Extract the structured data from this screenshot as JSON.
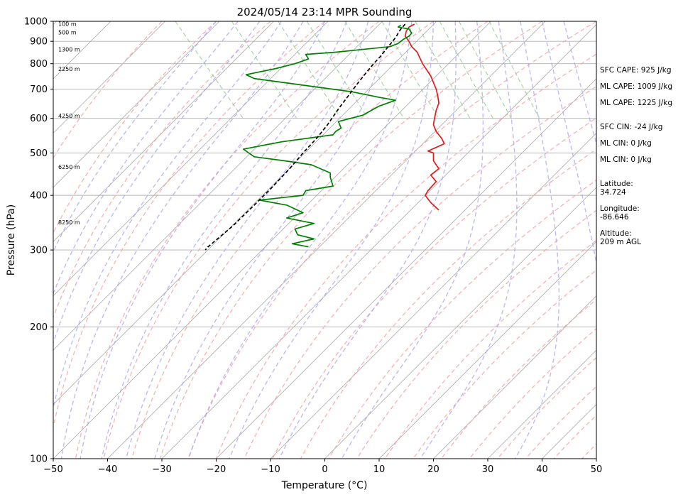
{
  "chart_data": {
    "type": "line",
    "title": "2024/05/14 23:14 MPR Sounding",
    "xlabel": "Temperature (°C)",
    "ylabel": "Pressure (hPa)",
    "xlim": [
      -50,
      50
    ],
    "ylim": [
      1000,
      100
    ],
    "y_scale": "log",
    "x_ticks": [
      -50,
      -40,
      -30,
      -20,
      -10,
      0,
      10,
      20,
      30,
      40,
      50
    ],
    "x_tick_labels": [
      "−50",
      "−40",
      "−30",
      "−20",
      "−10",
      "0",
      "10",
      "20",
      "30",
      "40",
      "50"
    ],
    "y_ticks": [
      1000,
      900,
      800,
      700,
      600,
      500,
      400,
      300,
      200,
      100
    ],
    "y_tick_labels": [
      "1000",
      "900",
      "800",
      "700",
      "600",
      "500",
      "400",
      "300",
      "200",
      "100"
    ],
    "grid": true,
    "series": [
      {
        "color": "#e41a1c",
        "points": [
          [
            16.5,
            985
          ],
          [
            15.5,
            970
          ],
          [
            15.0,
            950
          ],
          [
            14.8,
            925
          ],
          [
            15.5,
            900
          ],
          [
            16.0,
            875
          ],
          [
            17.0,
            850
          ],
          [
            18.0,
            800
          ],
          [
            19.5,
            750
          ],
          [
            20.5,
            700
          ],
          [
            20.8,
            675
          ],
          [
            21.0,
            650
          ],
          [
            20.5,
            625
          ],
          [
            20.2,
            600
          ],
          [
            20.0,
            580
          ],
          [
            20.5,
            560
          ],
          [
            21.5,
            540
          ],
          [
            22.0,
            525
          ],
          [
            19.0,
            505
          ],
          [
            20.0,
            500
          ],
          [
            20.0,
            480
          ],
          [
            21.0,
            460
          ],
          [
            19.5,
            445
          ],
          [
            20.5,
            430
          ],
          [
            19.0,
            410
          ],
          [
            18.5,
            400
          ],
          [
            19.5,
            385
          ],
          [
            20.5,
            375
          ],
          [
            21.0,
            370
          ]
        ]
      },
      {
        "color": "#008000",
        "points": [
          [
            14.0,
            980
          ],
          [
            13.5,
            970
          ],
          [
            15.5,
            960
          ],
          [
            16.0,
            940
          ],
          [
            15.5,
            925
          ],
          [
            14.5,
            910
          ],
          [
            13.5,
            890
          ],
          [
            12.0,
            875
          ],
          [
            8.0,
            865
          ],
          [
            2.0,
            850
          ],
          [
            -3.5,
            840
          ],
          [
            -3.0,
            820
          ],
          [
            -5.5,
            800
          ],
          [
            -9.0,
            780
          ],
          [
            -14.5,
            755
          ],
          [
            -13.0,
            740
          ],
          [
            -6.0,
            720
          ],
          [
            5.0,
            690
          ],
          [
            10.0,
            670
          ],
          [
            13.0,
            660
          ],
          [
            10.0,
            640
          ],
          [
            7.0,
            610
          ],
          [
            2.5,
            590
          ],
          [
            3.0,
            570
          ],
          [
            2.0,
            560
          ],
          [
            1.5,
            550
          ],
          [
            -8.0,
            530
          ],
          [
            -15.0,
            510
          ],
          [
            -13.0,
            490
          ],
          [
            -7.5,
            480
          ],
          [
            -2.5,
            470
          ],
          [
            1.0,
            450
          ],
          [
            1.0,
            440
          ],
          [
            1.5,
            420
          ],
          [
            -3.5,
            410
          ],
          [
            -4.0,
            400
          ],
          [
            -12.0,
            390
          ],
          [
            -7.0,
            380
          ],
          [
            -4.0,
            365
          ],
          [
            -7.0,
            355
          ],
          [
            -2.0,
            345
          ],
          [
            -5.5,
            335
          ],
          [
            -5.0,
            325
          ],
          [
            -2.0,
            318
          ],
          [
            -6.0,
            310
          ],
          [
            -3.0,
            305
          ]
        ]
      },
      {
        "color": "#000000",
        "dashed": true,
        "points": [
          [
            14.8,
            985
          ],
          [
            14.0,
            960
          ],
          [
            13.5,
            940
          ],
          [
            13.2,
            925
          ],
          [
            12.5,
            900
          ],
          [
            11.5,
            870
          ],
          [
            10.2,
            830
          ],
          [
            9.0,
            800
          ],
          [
            7.5,
            760
          ],
          [
            6.0,
            720
          ],
          [
            4.5,
            680
          ],
          [
            2.5,
            630
          ],
          [
            0.5,
            580
          ],
          [
            -1.5,
            540
          ],
          [
            -4.0,
            500
          ],
          [
            -6.5,
            460
          ],
          [
            -9.5,
            420
          ],
          [
            -13.0,
            380
          ],
          [
            -17.0,
            340
          ],
          [
            -21.5,
            305
          ],
          [
            -22.0,
            300
          ]
        ]
      }
    ],
    "height_labels": [
      {
        "text": "100 m",
        "pressure": 987
      },
      {
        "text": "500 m",
        "pressure": 943
      },
      {
        "text": "1300 m",
        "pressure": 862
      },
      {
        "text": "2250 m",
        "pressure": 778
      },
      {
        "text": "4250 m",
        "pressure": 608
      },
      {
        "text": "6250 m",
        "pressure": 465
      },
      {
        "text": "8250 m",
        "pressure": 347
      }
    ]
  },
  "side_panel": {
    "sfc_cape": "SFC CAPE: 925 J/kg",
    "ml_cape_1": "ML CAPE: 1009 J/kg",
    "ml_cape_2": "ML CAPE: 1225 J/kg",
    "sfc_cin": "SFC CIN: -24 J/kg",
    "ml_cin_1": "ML CIN: 0 J/kg",
    "ml_cin_2": "ML CIN: 0 J/kg",
    "latitude_label": "Latitude:",
    "latitude_value": "34.724",
    "longitude_label": "Longitude:",
    "longitude_value": "-86.646",
    "altitude_label": "Altitude:",
    "altitude_value": "209 m AGL"
  }
}
